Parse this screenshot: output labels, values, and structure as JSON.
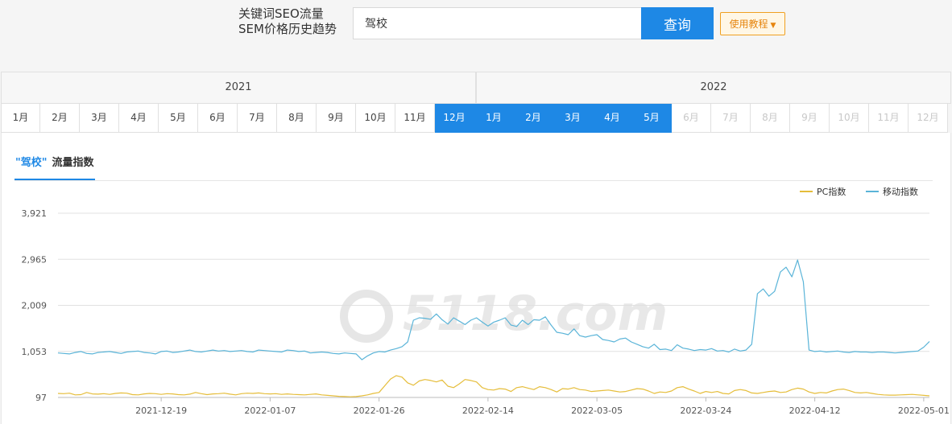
{
  "header": {
    "tagline_line1": "关键词SEO流量",
    "tagline_line2": "SEM价格历史趋势",
    "search_value": "驾校",
    "search_button": "查询",
    "tutorial_button": "使用教程"
  },
  "years": [
    {
      "label": "2021",
      "months": [
        {
          "label": "1月",
          "state": "normal"
        },
        {
          "label": "2月",
          "state": "normal"
        },
        {
          "label": "3月",
          "state": "normal"
        },
        {
          "label": "4月",
          "state": "normal"
        },
        {
          "label": "5月",
          "state": "normal"
        },
        {
          "label": "6月",
          "state": "normal"
        },
        {
          "label": "7月",
          "state": "normal"
        },
        {
          "label": "8月",
          "state": "normal"
        },
        {
          "label": "9月",
          "state": "normal"
        },
        {
          "label": "10月",
          "state": "normal"
        },
        {
          "label": "11月",
          "state": "normal"
        },
        {
          "label": "12月",
          "state": "active"
        }
      ]
    },
    {
      "label": "2022",
      "months": [
        {
          "label": "1月",
          "state": "active"
        },
        {
          "label": "2月",
          "state": "active"
        },
        {
          "label": "3月",
          "state": "active"
        },
        {
          "label": "4月",
          "state": "active"
        },
        {
          "label": "5月",
          "state": "active"
        },
        {
          "label": "6月",
          "state": "disabled"
        },
        {
          "label": "7月",
          "state": "disabled"
        },
        {
          "label": "8月",
          "state": "disabled"
        },
        {
          "label": "9月",
          "state": "disabled"
        },
        {
          "label": "10月",
          "state": "disabled"
        },
        {
          "label": "11月",
          "state": "disabled"
        },
        {
          "label": "12月",
          "state": "disabled"
        }
      ]
    }
  ],
  "panel": {
    "tab_keyword": "\"驾校\"",
    "tab_suffix": "流量指数"
  },
  "colors": {
    "accent": "#1e88e5",
    "pc_series": "#e5bd3a",
    "mobile_series": "#5ab4d8"
  },
  "chart_data": {
    "type": "line",
    "title": "",
    "xlabel": "",
    "ylabel": "",
    "ylim": [
      97,
      3921
    ],
    "yticks": [
      "3,921",
      "2,965",
      "2,009",
      "1,053",
      "97"
    ],
    "x_start": "2021-12-01",
    "x_end": "2022-05-02",
    "xticks": [
      "2021-12-19",
      "2022-01-07",
      "2022-01-26",
      "2022-02-14",
      "2022-03-05",
      "2022-03-24",
      "2022-04-12",
      "2022-05-01"
    ],
    "legend_position": "top-right",
    "grid": true,
    "watermark": "5118.com",
    "series": [
      {
        "name": "PC指数",
        "color": "#e5bd3a",
        "values": [
          180,
          175,
          185,
          150,
          155,
          200,
          170,
          165,
          175,
          160,
          180,
          190,
          185,
          155,
          150,
          170,
          180,
          175,
          160,
          175,
          170,
          155,
          150,
          165,
          200,
          175,
          155,
          170,
          175,
          185,
          165,
          150,
          175,
          185,
          180,
          190,
          175,
          170,
          175,
          160,
          170,
          160,
          155,
          150,
          160,
          170,
          150,
          140,
          130,
          120,
          115,
          110,
          115,
          130,
          150,
          180,
          200,
          340,
          480,
          550,
          520,
          400,
          350,
          440,
          470,
          450,
          420,
          460,
          330,
          300,
          380,
          470,
          450,
          420,
          300,
          260,
          250,
          280,
          270,
          220,
          300,
          320,
          290,
          260,
          320,
          300,
          260,
          210,
          280,
          270,
          300,
          260,
          250,
          220,
          230,
          240,
          250,
          230,
          210,
          220,
          250,
          280,
          270,
          230,
          180,
          210,
          200,
          230,
          300,
          320,
          270,
          230,
          180,
          220,
          200,
          220,
          180,
          170,
          240,
          260,
          240,
          190,
          180,
          200,
          220,
          230,
          200,
          210,
          260,
          290,
          270,
          210,
          180,
          200,
          190,
          230,
          260,
          270,
          240,
          200,
          190,
          200,
          180,
          160,
          150,
          145,
          145,
          150,
          155,
          160,
          150,
          140,
          130
        ]
      },
      {
        "name": "移动指数",
        "color": "#5ab4d8",
        "values": [
          1020,
          1010,
          1000,
          1030,
          1050,
          1010,
          1000,
          1030,
          1040,
          1050,
          1030,
          1010,
          1040,
          1050,
          1060,
          1030,
          1020,
          1000,
          1050,
          1060,
          1030,
          1040,
          1060,
          1080,
          1050,
          1040,
          1060,
          1080,
          1060,
          1070,
          1050,
          1060,
          1070,
          1050,
          1040,
          1080,
          1070,
          1060,
          1050,
          1040,
          1080,
          1070,
          1050,
          1060,
          1020,
          1030,
          1040,
          1030,
          1010,
          1000,
          1020,
          1010,
          1000,
          880,
          960,
          1020,
          1050,
          1040,
          1080,
          1110,
          1150,
          1250,
          1700,
          1750,
          1740,
          1720,
          1830,
          1710,
          1620,
          1750,
          1680,
          1610,
          1700,
          1750,
          1660,
          1580,
          1660,
          1700,
          1750,
          1600,
          1570,
          1700,
          1610,
          1710,
          1700,
          1770,
          1600,
          1450,
          1430,
          1400,
          1520,
          1380,
          1350,
          1380,
          1400,
          1300,
          1280,
          1250,
          1310,
          1330,
          1250,
          1200,
          1150,
          1120,
          1200,
          1090,
          1100,
          1070,
          1190,
          1120,
          1100,
          1070,
          1090,
          1080,
          1110,
          1060,
          1070,
          1040,
          1100,
          1060,
          1080,
          1200,
          2250,
          2350,
          2200,
          2300,
          2700,
          2800,
          2600,
          2950,
          2500,
          1080,
          1050,
          1060,
          1040,
          1050,
          1060,
          1040,
          1030,
          1050,
          1040,
          1040,
          1030,
          1040,
          1040,
          1030,
          1020,
          1030,
          1040,
          1050,
          1060,
          1140,
          1260
        ]
      }
    ]
  }
}
